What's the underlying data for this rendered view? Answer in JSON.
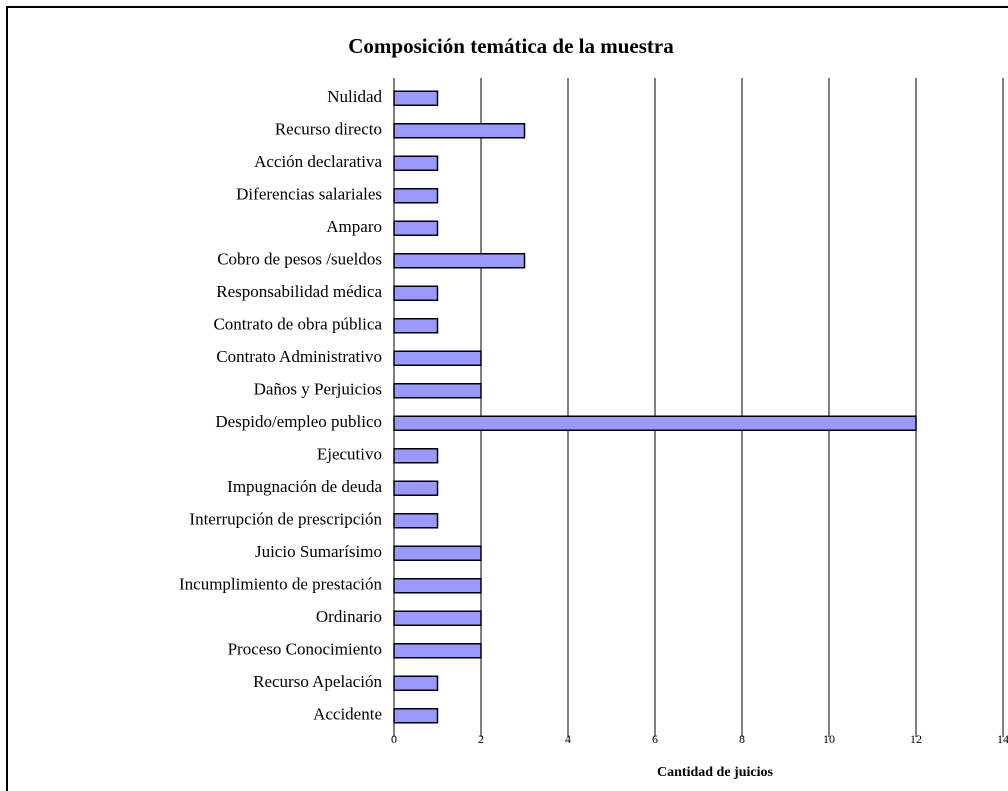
{
  "chart_data": {
    "type": "barh",
    "title": "Composición temática de la muestra",
    "xlabel": "Cantidad de juicios",
    "categories": [
      "Nulidad",
      "Recurso directo",
      "Acción declarativa",
      "Diferencias salariales",
      "Amparo",
      "Cobro de pesos /sueldos",
      "Responsabilidad médica",
      "Contrato de obra pública",
      "Contrato Administrativo",
      "Daños y Perjuicios",
      "Despido/empleo publico",
      "Ejecutivo",
      "Impugnación de deuda",
      "Interrupción de prescripción",
      "Juicio Sumarísimo",
      "Incumplimiento de prestación",
      "Ordinario",
      "Proceso Conocimiento",
      "Recurso Apelación",
      "Accidente"
    ],
    "values": [
      1,
      3,
      1,
      1,
      1,
      3,
      1,
      1,
      2,
      2,
      12,
      1,
      1,
      1,
      2,
      2,
      2,
      2,
      1,
      1
    ],
    "color": "#9999ff",
    "xlim": [
      0,
      14
    ],
    "xticks": [
      0,
      2,
      4,
      6,
      8,
      10,
      12,
      14
    ],
    "grid": true
  }
}
